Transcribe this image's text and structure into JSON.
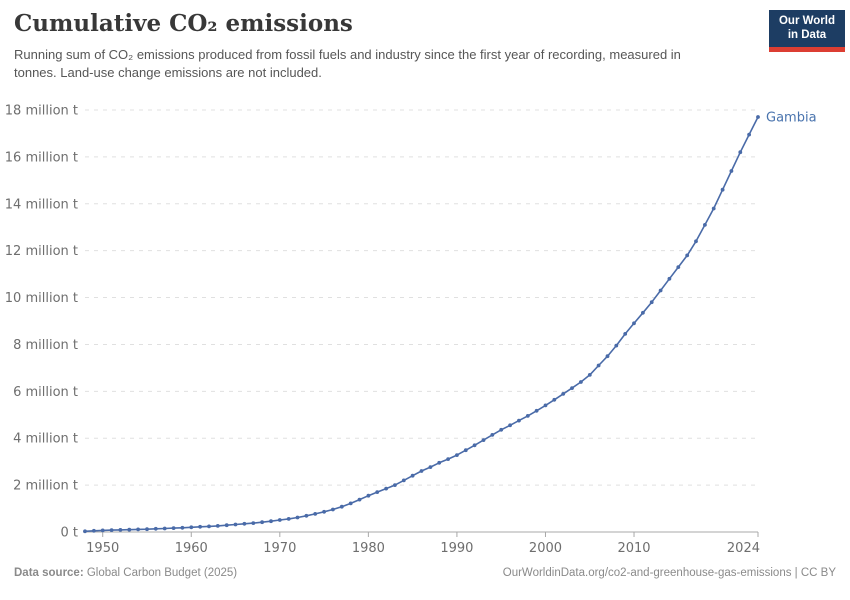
{
  "header": {
    "title": "Cumulative CO₂ emissions",
    "subtitle": "Running sum of CO₂ emissions produced from fossil fuels and industry since the first year of recording, measured in tonnes. Land-use change emissions are not included.",
    "logo_line1": "Our World",
    "logo_line2": "in Data"
  },
  "footer": {
    "source_label": "Data source:",
    "source_value": " Global Carbon Budget (2025)",
    "right_text": "OurWorldinData.org/co2-and-greenhouse-gas-emissions | CC BY"
  },
  "colors": {
    "line": "#4a6ba8",
    "entity_label": "#4a74ae",
    "grid": "#e0e0e0",
    "axis": "#a8a8a8",
    "tick_text": "#6e6e6e",
    "logo_bg": "#1d3d63",
    "logo_red": "#dc3e32"
  },
  "chart_data": {
    "type": "line",
    "title": "Cumulative CO₂ emissions",
    "entity": "Gambia",
    "ylabel": "",
    "xlabel": "",
    "unit": "tonnes",
    "values_unit": "million tonnes",
    "grid": true,
    "legend_position": "end-of-line-label",
    "xlim": [
      1948,
      2024
    ],
    "ylim": [
      0,
      18
    ],
    "x_ticks": [
      {
        "value": 1950,
        "label": "1950"
      },
      {
        "value": 1960,
        "label": "1960"
      },
      {
        "value": 1970,
        "label": "1970"
      },
      {
        "value": 1980,
        "label": "1980"
      },
      {
        "value": 1990,
        "label": "1990"
      },
      {
        "value": 2000,
        "label": "2000"
      },
      {
        "value": 2010,
        "label": "2010"
      },
      {
        "value": 2024,
        "label": "2024"
      }
    ],
    "y_ticks": [
      {
        "value": 0,
        "label": "0 t"
      },
      {
        "value": 2,
        "label": "2 million t"
      },
      {
        "value": 4,
        "label": "4 million t"
      },
      {
        "value": 6,
        "label": "6 million t"
      },
      {
        "value": 8,
        "label": "8 million t"
      },
      {
        "value": 10,
        "label": "10 million t"
      },
      {
        "value": 12,
        "label": "12 million t"
      },
      {
        "value": 14,
        "label": "14 million t"
      },
      {
        "value": 16,
        "label": "16 million t"
      },
      {
        "value": 18,
        "label": "18 million t"
      }
    ],
    "x": [
      1948,
      1949,
      1950,
      1951,
      1952,
      1953,
      1954,
      1955,
      1956,
      1957,
      1958,
      1959,
      1960,
      1961,
      1962,
      1963,
      1964,
      1965,
      1966,
      1967,
      1968,
      1969,
      1970,
      1971,
      1972,
      1973,
      1974,
      1975,
      1976,
      1977,
      1978,
      1979,
      1980,
      1981,
      1982,
      1983,
      1984,
      1985,
      1986,
      1987,
      1988,
      1989,
      1990,
      1991,
      1992,
      1993,
      1994,
      1995,
      1996,
      1997,
      1998,
      1999,
      2000,
      2001,
      2002,
      2003,
      2004,
      2005,
      2006,
      2007,
      2008,
      2009,
      2010,
      2011,
      2012,
      2013,
      2014,
      2015,
      2016,
      2017,
      2018,
      2019,
      2020,
      2021,
      2022,
      2023,
      2024
    ],
    "series": [
      {
        "name": "Gambia",
        "values": [
          0.03,
          0.05,
          0.07,
          0.08,
          0.09,
          0.1,
          0.11,
          0.12,
          0.135,
          0.15,
          0.165,
          0.18,
          0.2,
          0.22,
          0.24,
          0.26,
          0.29,
          0.32,
          0.35,
          0.38,
          0.42,
          0.46,
          0.51,
          0.56,
          0.62,
          0.69,
          0.77,
          0.86,
          0.96,
          1.08,
          1.22,
          1.38,
          1.55,
          1.7,
          1.85,
          2.0,
          2.2,
          2.4,
          2.6,
          2.77,
          2.95,
          3.11,
          3.28,
          3.49,
          3.7,
          3.92,
          4.14,
          4.36,
          4.55,
          4.75,
          4.95,
          5.17,
          5.4,
          5.64,
          5.89,
          6.14,
          6.4,
          6.7,
          7.1,
          7.5,
          7.95,
          8.45,
          8.9,
          9.35,
          9.8,
          10.3,
          10.8,
          11.3,
          11.8,
          12.4,
          13.1,
          13.8,
          14.6,
          15.4,
          16.2,
          16.95,
          17.7
        ]
      }
    ]
  }
}
